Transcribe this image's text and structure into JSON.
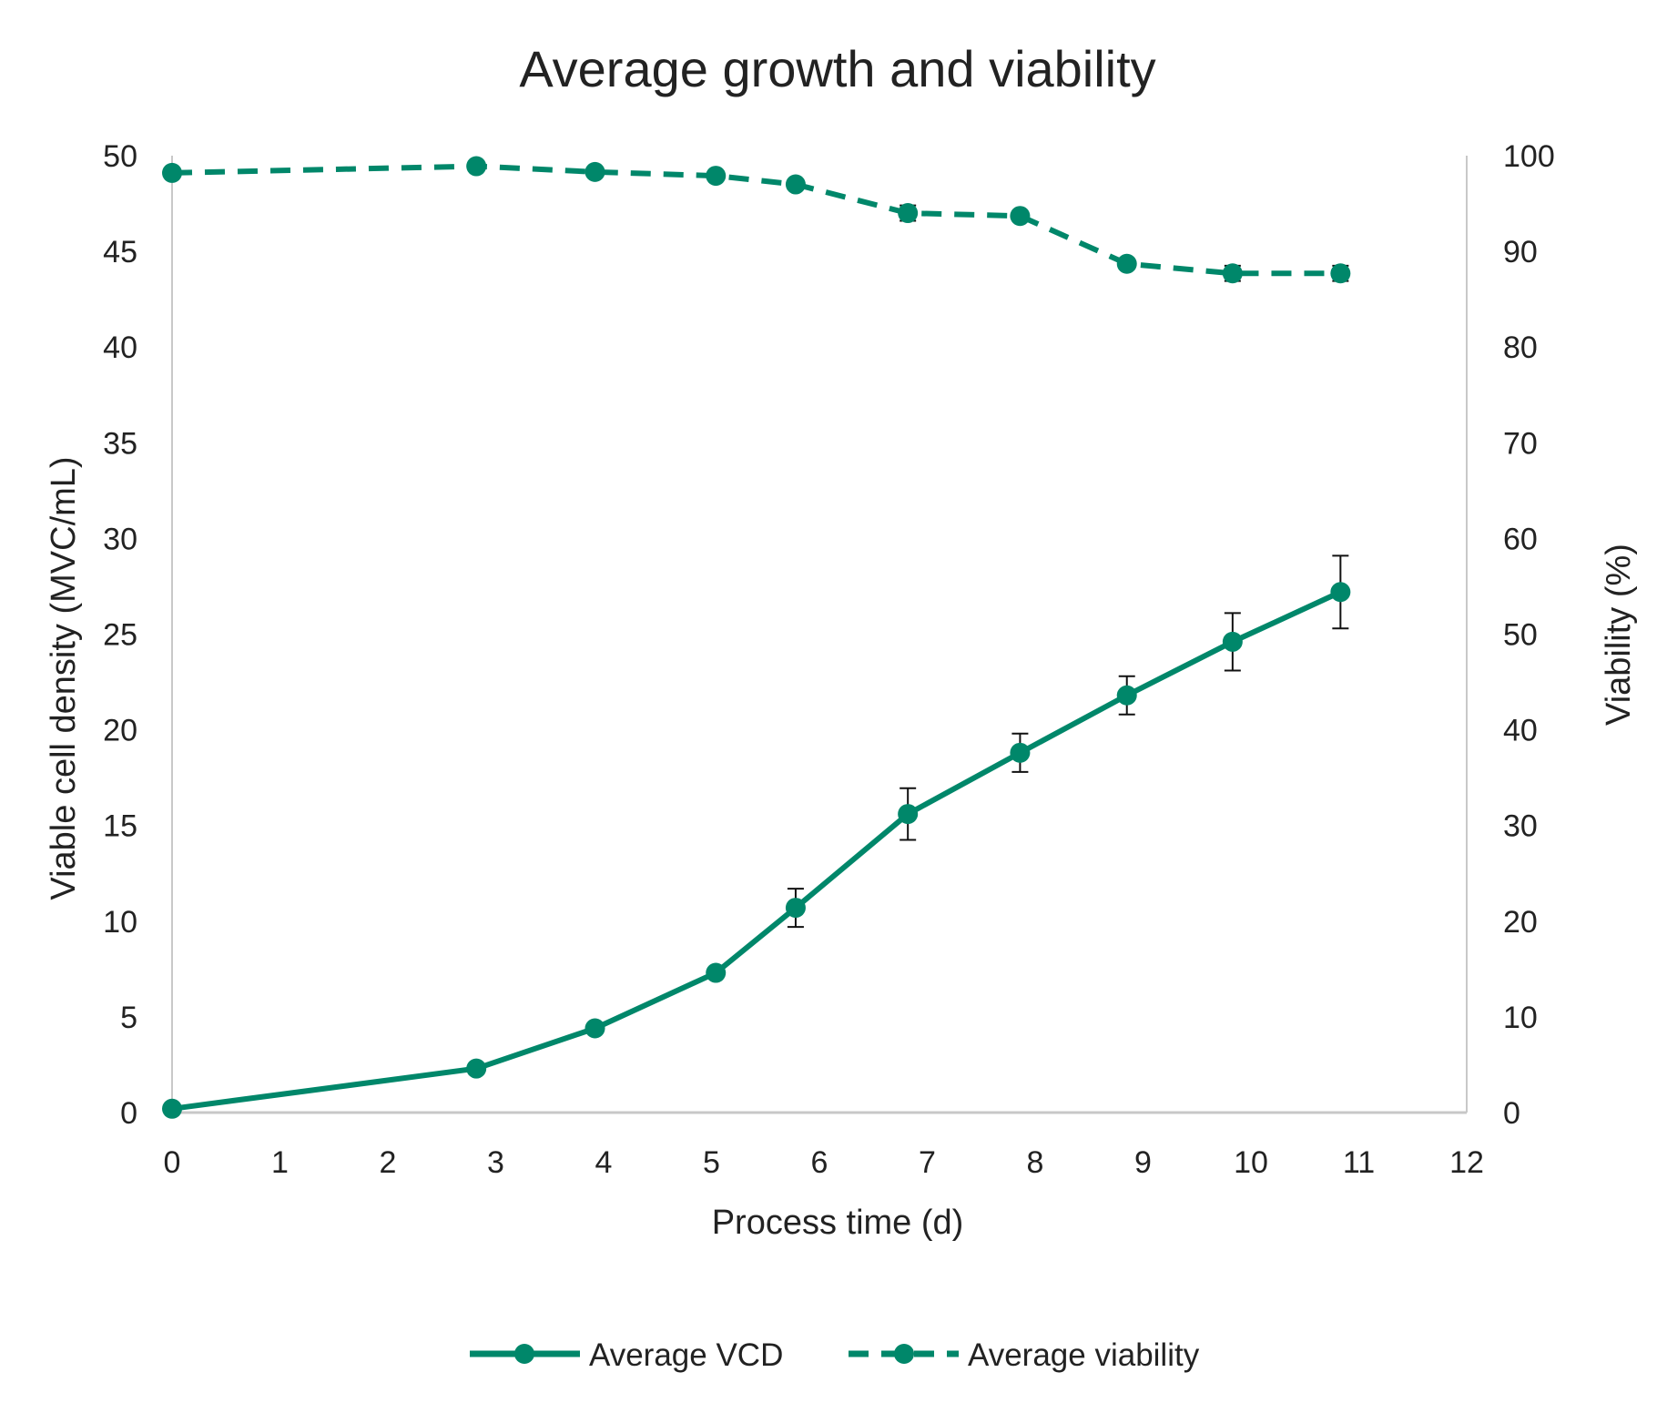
{
  "chart_data": {
    "type": "line",
    "title": "Average growth and viability",
    "xlabel": "Process time (d)",
    "ylabel": "Viable cell density (MVC/mL)",
    "y2label": "Viability (%)",
    "xlim": [
      0,
      12
    ],
    "ylim": [
      0,
      50
    ],
    "y2lim": [
      0,
      100
    ],
    "xticks": [
      "0",
      "1",
      "2",
      "3",
      "4",
      "5",
      "6",
      "7",
      "8",
      "9",
      "10",
      "11",
      "12"
    ],
    "yticks": [
      "0",
      "5",
      "10",
      "15",
      "20",
      "25",
      "30",
      "35",
      "40",
      "45",
      "50"
    ],
    "y2ticks": [
      "0",
      "10",
      "20",
      "30",
      "40",
      "50",
      "60",
      "70",
      "80",
      "90",
      "100"
    ],
    "grid": false,
    "legend_position": "bottom",
    "x": [
      0,
      2.82,
      3.92,
      5.04,
      5.78,
      6.82,
      7.86,
      8.85,
      9.83,
      10.83
    ],
    "series": [
      {
        "name": "Average VCD",
        "axis": "left",
        "style": "solid",
        "color": "#00876a",
        "values": [
          0.2,
          2.3,
          4.4,
          7.3,
          10.7,
          15.6,
          18.8,
          21.8,
          24.6,
          27.2
        ],
        "errors": [
          0,
          0,
          0,
          0,
          1.0,
          1.35,
          1.0,
          1.0,
          1.5,
          1.9
        ]
      },
      {
        "name": "Average viability",
        "axis": "right",
        "style": "dashed",
        "color": "#00876a",
        "values": [
          98.2,
          98.9,
          98.3,
          97.9,
          97.0,
          94.0,
          93.7,
          88.7,
          87.7,
          87.7
        ],
        "errors": [
          0.4,
          0,
          0,
          0.4,
          0.5,
          0.8,
          0,
          0.5,
          0.8,
          0.8
        ]
      }
    ]
  }
}
